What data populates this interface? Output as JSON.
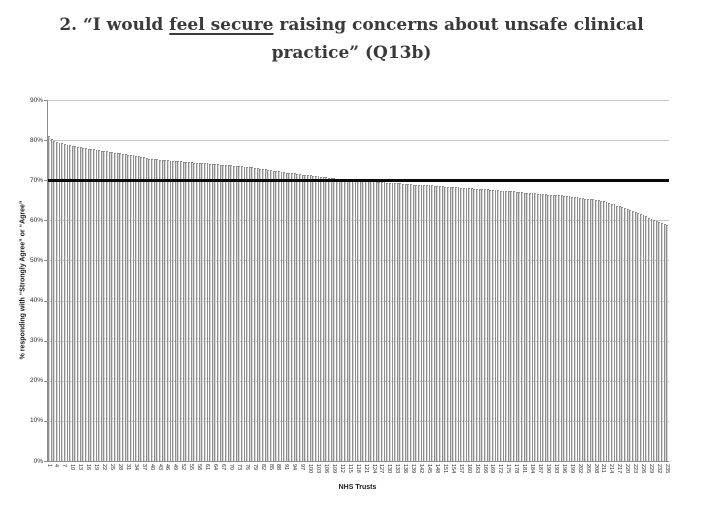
{
  "title": {
    "full": "2. “I would feel secure raising concerns about unsafe clinical practice” (Q13b)",
    "prefix": "2. “I would ",
    "underlined": "feel secure",
    "line1_rest": " raising concerns about unsafe clinical",
    "line2": "practice” (Q13b)"
  },
  "colors": {
    "title_text": "#3a3a3a",
    "axis_line": "#8c8c8c",
    "gridline": "#c8c8c8",
    "bar_fill": "#d9d9d9",
    "bar_border": "#8f8f8f",
    "reference_line": "#0a0a0a",
    "tick_text": "#2a2a2a"
  },
  "chart_data": {
    "type": "bar",
    "title": "2. “I would feel secure raising concerns about unsafe clinical practice” (Q13b)",
    "xlabel": "NHS Trusts",
    "ylabel": "% responding with “Strongly Agree” or “Agree”",
    "ylim": [
      0,
      90
    ],
    "grid": true,
    "legend": false,
    "y_tick_labels": [
      "0%",
      "10%",
      "20%",
      "30%",
      "40%",
      "50%",
      "60%",
      "70%",
      "80%",
      "90%"
    ],
    "x_tick_interval": 3,
    "x_tick_labels": [
      "1",
      "4",
      "7",
      "10",
      "13",
      "16",
      "19",
      "22",
      "25",
      "28",
      "31",
      "34",
      "37",
      "40",
      "43",
      "46",
      "49",
      "52",
      "55",
      "58",
      "61",
      "64",
      "67",
      "70",
      "73",
      "76",
      "79",
      "82",
      "85",
      "88",
      "91",
      "94",
      "97",
      "100",
      "103",
      "106",
      "109",
      "112",
      "115",
      "118",
      "121",
      "124",
      "127",
      "130",
      "133",
      "136",
      "139",
      "142",
      "145",
      "148",
      "151",
      "154",
      "157",
      "160",
      "163",
      "166",
      "169",
      "172",
      "175",
      "178",
      "181",
      "184",
      "187",
      "190",
      "193",
      "196",
      "199",
      "202",
      "205",
      "208",
      "211",
      "214",
      "217",
      "220",
      "223",
      "226",
      "229",
      "232",
      "235"
    ],
    "reference_line": {
      "value": 70
    },
    "n_bars": 235,
    "values": [
      81.0,
      80.2,
      79.8,
      79.6,
      79.4,
      79.2,
      79.0,
      78.9,
      78.7,
      78.6,
      78.5,
      78.3,
      78.2,
      78.1,
      78.0,
      77.9,
      77.8,
      77.7,
      77.6,
      77.5,
      77.4,
      77.3,
      77.2,
      77.1,
      77.0,
      76.9,
      76.8,
      76.7,
      76.6,
      76.5,
      76.4,
      76.3,
      76.2,
      76.1,
      76.0,
      75.9,
      75.7,
      75.6,
      75.4,
      75.3,
      75.3,
      75.2,
      75.1,
      75.1,
      75.0,
      75.0,
      74.9,
      74.8,
      74.8,
      74.7,
      74.7,
      74.6,
      74.6,
      74.5,
      74.5,
      74.4,
      74.4,
      74.3,
      74.3,
      74.2,
      74.2,
      74.1,
      74.1,
      74.0,
      74.0,
      73.9,
      73.9,
      73.8,
      73.8,
      73.7,
      73.6,
      73.6,
      73.5,
      73.5,
      73.4,
      73.4,
      73.3,
      73.2,
      73.1,
      73.0,
      72.9,
      72.8,
      72.7,
      72.6,
      72.5,
      72.4,
      72.3,
      72.2,
      72.1,
      72.0,
      71.9,
      71.8,
      71.8,
      71.7,
      71.6,
      71.5,
      71.4,
      71.4,
      71.3,
      71.2,
      71.1,
      71.0,
      71.0,
      70.9,
      70.8,
      70.7,
      70.6,
      70.6,
      70.5,
      70.4,
      70.3,
      70.3,
      70.2,
      70.2,
      70.1,
      70.1,
      70.0,
      70.0,
      69.9,
      69.9,
      69.8,
      69.8,
      69.7,
      69.7,
      69.6,
      69.6,
      69.5,
      69.5,
      69.4,
      69.4,
      69.3,
      69.3,
      69.2,
      69.2,
      69.1,
      69.1,
      69.0,
      69.0,
      68.9,
      68.9,
      68.8,
      68.8,
      68.8,
      68.7,
      68.7,
      68.7,
      68.6,
      68.6,
      68.5,
      68.5,
      68.4,
      68.4,
      68.3,
      68.3,
      68.2,
      68.2,
      68.1,
      68.1,
      68.0,
      68.0,
      68.0,
      67.9,
      67.9,
      67.8,
      67.8,
      67.7,
      67.7,
      67.6,
      67.6,
      67.5,
      67.5,
      67.4,
      67.4,
      67.3,
      67.3,
      67.2,
      67.2,
      67.1,
      67.1,
      67.0,
      66.9,
      66.9,
      66.8,
      66.7,
      66.7,
      66.6,
      66.6,
      66.5,
      66.5,
      66.4,
      66.4,
      66.3,
      66.3,
      66.2,
      66.2,
      66.1,
      66.0,
      66.0,
      65.9,
      65.8,
      65.7,
      65.6,
      65.5,
      65.4,
      65.3,
      65.2,
      65.2,
      65.1,
      65.0,
      64.8,
      64.7,
      64.5,
      64.4,
      64.2,
      64.0,
      63.7,
      63.5,
      63.3,
      63.0,
      62.8,
      62.5,
      62.3,
      62.0,
      61.8,
      61.5,
      61.3,
      61.0,
      60.7,
      60.4,
      60.2,
      59.9,
      59.7,
      59.4,
      59.1,
      58.8
    ]
  }
}
